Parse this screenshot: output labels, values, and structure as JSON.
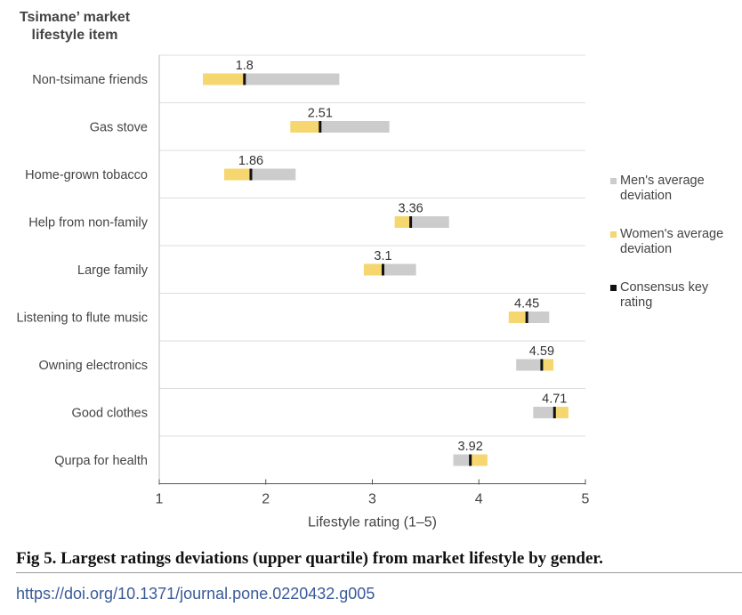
{
  "chart_data": {
    "type": "bar",
    "y_title_lines": [
      "Tsimane’ market",
      "lifestyle item"
    ],
    "xlabel": "Lifestyle rating (1–5)",
    "xlim": [
      1,
      5
    ],
    "xticks": [
      1,
      2,
      3,
      4,
      5
    ],
    "grid": true,
    "legend_position": "right",
    "categories": [
      "Non-tsimane friends",
      "Gas stove",
      "Home-grown tobacco",
      "Help from non-family",
      "Large family",
      "Listening to flute music",
      "Owning electronics",
      "Good clothes",
      "Qurpa for health"
    ],
    "series": [
      {
        "name": "Men's average deviation",
        "key": "men",
        "color": "#cccccc",
        "values": [
          2.69,
          3.16,
          2.28,
          3.72,
          3.41,
          4.66,
          4.35,
          4.51,
          3.76
        ]
      },
      {
        "name": "Women's average deviation",
        "key": "women",
        "color": "#f5d66f",
        "values": [
          1.41,
          2.23,
          1.61,
          3.21,
          2.92,
          4.28,
          4.7,
          4.84,
          4.08
        ]
      },
      {
        "name": "Consensus key rating",
        "key": "consensus",
        "color": "#111111",
        "values": [
          1.8,
          2.51,
          1.86,
          3.36,
          3.1,
          4.45,
          4.59,
          4.71,
          3.92
        ]
      }
    ],
    "value_labels": [
      "1.8",
      "2.51",
      "1.86",
      "3.36",
      "3.1",
      "4.45",
      "4.59",
      "4.71",
      "3.92"
    ],
    "legend_lines": [
      [
        "Men's average",
        "deviation"
      ],
      [
        "Women's average",
        "deviation"
      ],
      [
        "Consensus key",
        "rating"
      ]
    ]
  },
  "caption": "Fig 5. Largest ratings deviations (upper quartile) from market lifestyle by gender.",
  "doi": "https://doi.org/10.1371/journal.pone.0220432.g005"
}
